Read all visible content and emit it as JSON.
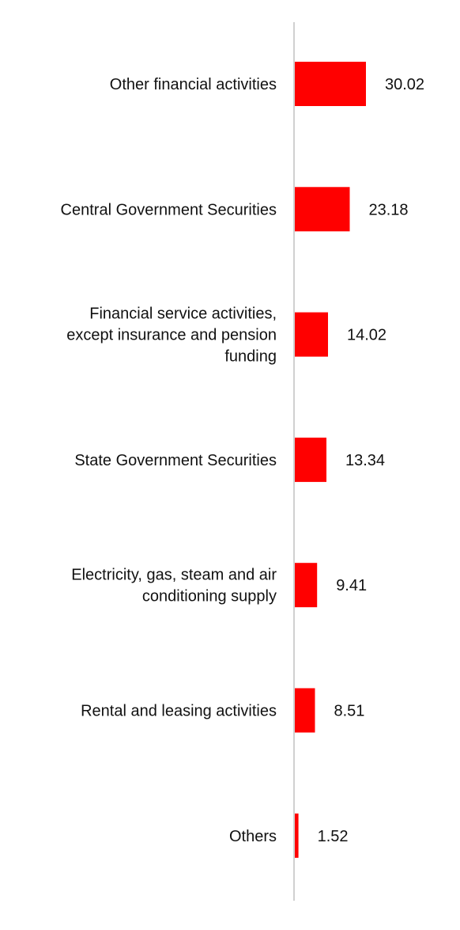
{
  "chart_data": {
    "type": "bar",
    "orientation": "horizontal",
    "categories": [
      "Other financial activities",
      "Central Government Securities",
      "Financial service activities, except insurance and pension funding",
      "State Government Securities",
      "Electricity, gas, steam and air conditioning supply",
      "Rental and leasing activities",
      "Others"
    ],
    "category_lines": [
      [
        "Other financial activities"
      ],
      [
        "Central Government Securities"
      ],
      [
        "Financial service activities,",
        "except insurance and pension",
        "funding"
      ],
      [
        "State Government Securities"
      ],
      [
        "Electricity, gas, steam and air",
        "conditioning supply"
      ],
      [
        "Rental and leasing activities"
      ],
      [
        "Others"
      ]
    ],
    "values": [
      30.02,
      23.18,
      14.02,
      13.34,
      9.41,
      8.51,
      1.52
    ],
    "value_labels": [
      "30.02",
      "23.18",
      "14.02",
      "13.34",
      "9.41",
      "8.51",
      "1.52"
    ],
    "xlim": [
      0,
      30.02
    ],
    "grid": false,
    "legend": "none",
    "colors": {
      "bar": "#ff0000",
      "axis": "#d0d0d0",
      "text": "#111111"
    }
  }
}
